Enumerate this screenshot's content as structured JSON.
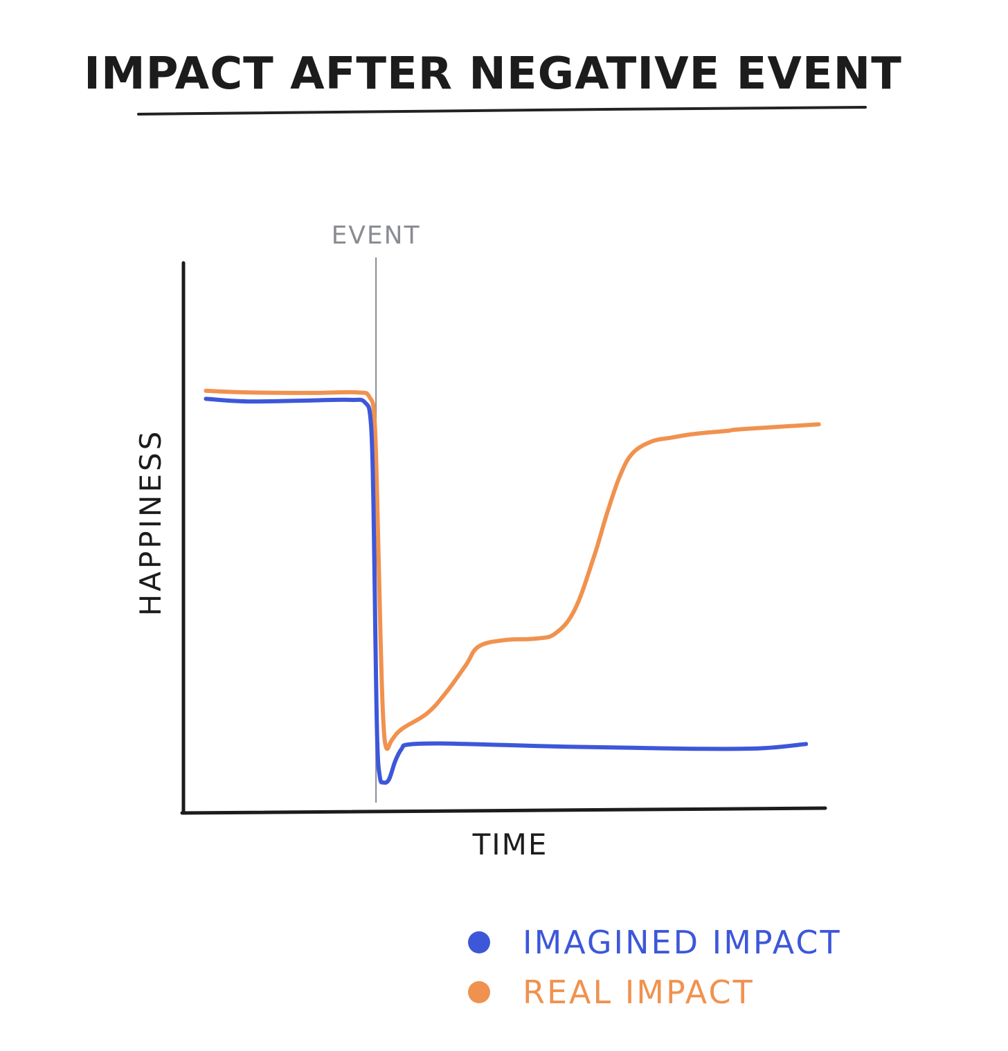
{
  "chart_data": {
    "type": "line",
    "title": "IMPACT AFTER NEGATIVE EVENT",
    "xlabel": "TIME",
    "ylabel": "HAPPINESS",
    "xlim": [
      0,
      100
    ],
    "ylim": [
      0,
      100
    ],
    "grid": false,
    "legend_position": "bottom-right",
    "annotations": [
      {
        "label": "EVENT",
        "x": 30,
        "color": "#8a8c93"
      }
    ],
    "series": [
      {
        "name": "IMAGINED IMPACT",
        "color": "#3d57d9",
        "x": [
          3.5,
          10,
          20,
          26,
          28.3,
          29.2,
          29.6,
          29.9,
          30.2,
          30.6,
          31.1,
          32,
          33,
          34,
          35,
          40,
          50,
          60,
          70,
          80,
          90,
          97
        ],
        "y": [
          74.5,
          74,
          74.2,
          74.3,
          73.8,
          70,
          55,
          30,
          10,
          3.5,
          2.5,
          3,
          6.5,
          8.8,
          9.6,
          9.8,
          9.5,
          9.2,
          9,
          8.8,
          8.9,
          9.7
        ]
      },
      {
        "name": "REAL IMPACT",
        "color": "#f0924f",
        "x": [
          3.5,
          10,
          20,
          27,
          29,
          29.8,
          30.3,
          30.7,
          31.1,
          31.6,
          32.5,
          34,
          38,
          41,
          44,
          46,
          50,
          55,
          58,
          61,
          64,
          66,
          68,
          70,
          73,
          76,
          79,
          82,
          85,
          87,
          99
        ],
        "y": [
          76,
          75.7,
          75.6,
          75.7,
          74.8,
          70,
          50,
          30,
          15,
          9,
          10.5,
          12.5,
          15.5,
          19.5,
          24.5,
          28,
          29.2,
          29.5,
          30.5,
          35,
          45,
          53,
          60,
          64.3,
          66.5,
          67.2,
          67.8,
          68.2,
          68.5,
          68.8,
          69.7
        ]
      }
    ]
  }
}
